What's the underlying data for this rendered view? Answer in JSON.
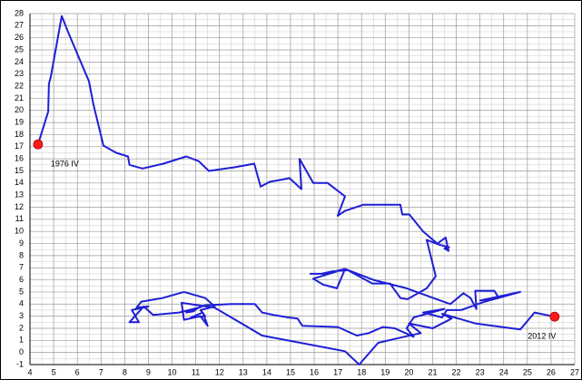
{
  "chart_data": {
    "type": "line",
    "x": [
      4.34,
      4.77,
      4.8,
      4.88,
      5.34,
      5.65,
      6.49,
      6.68,
      7.1,
      7.64,
      8.14,
      8.2,
      8.75,
      9.63,
      10.6,
      11.13,
      11.55,
      12.62,
      13.47,
      13.74,
      14.12,
      14.96,
      15.46,
      15.38,
      15.96,
      16.57,
      17.3,
      16.99,
      17.3,
      18.07,
      19.64,
      19.72,
      20.02,
      20.6,
      21.2,
      21.55,
      21.67,
      21.5,
      21.7,
      21.29,
      20.75,
      21.13,
      20.75,
      19.94,
      19.64,
      19.2,
      18.45,
      17.42,
      16.76,
      16.3,
      15.84,
      16.4,
      17.3,
      16.96,
      16.38,
      15.96,
      17.3,
      18.5,
      19.9,
      21.75,
      22.3,
      22.6,
      22.85,
      22.8,
      23.6,
      23.8,
      23.0,
      24.7,
      23.2,
      22.2,
      21.6,
      21.4,
      20.6,
      21.5,
      20.2,
      19.9,
      20.2,
      19.4,
      18.9,
      18.3,
      17.8,
      17.0,
      15.5,
      15.3,
      14.9,
      14.3,
      13.8,
      13.5,
      12.5,
      11.4,
      10.6,
      10.9,
      11.1,
      10.3,
      9.2,
      8.8,
      8.2,
      8.6,
      8.3,
      9.0,
      8.5,
      8.7,
      9.6,
      10.5,
      11.4,
      11.8,
      11.2,
      11.4,
      10.8,
      11.3,
      11.5,
      11.2,
      10.5,
      10.4,
      11.8,
      13.8,
      17.3,
      17.9,
      18.7,
      19.8,
      20.5,
      20.0,
      21.0,
      21.8,
      21.4,
      22.8,
      24.7,
      25.3,
      26.15
    ],
    "values": [
      17.2,
      19.9,
      22.2,
      22.8,
      27.8,
      26.3,
      22.4,
      20.5,
      17.1,
      16.5,
      16.2,
      15.5,
      15.2,
      15.6,
      16.2,
      15.8,
      15.0,
      15.3,
      15.6,
      13.7,
      14.1,
      14.4,
      13.5,
      16.0,
      14.0,
      14.0,
      12.9,
      11.3,
      11.7,
      12.2,
      12.2,
      11.4,
      11.4,
      10.0,
      9.0,
      9.5,
      8.4,
      8.6,
      8.7,
      8.9,
      9.3,
      6.3,
      5.3,
      4.4,
      4.5,
      5.7,
      5.7,
      6.8,
      6.7,
      6.5,
      6.5,
      6.5,
      6.9,
      5.3,
      5.6,
      6.1,
      6.9,
      6.0,
      5.3,
      4.0,
      4.9,
      4.5,
      3.6,
      5.1,
      5.1,
      4.5,
      4.3,
      5.0,
      4.2,
      3.5,
      3.5,
      2.9,
      3.3,
      3.6,
      2.9,
      2.0,
      1.3,
      2.0,
      2.1,
      1.6,
      1.4,
      2.1,
      2.2,
      2.8,
      2.9,
      3.1,
      3.3,
      4.0,
      4.0,
      3.9,
      3.3,
      3.4,
      3.7,
      3.3,
      3.1,
      3.8,
      2.5,
      2.5,
      3.5,
      3.8,
      3.7,
      4.2,
      4.5,
      5.0,
      4.5,
      3.8,
      3.5,
      3.0,
      2.9,
      3.3,
      2.2,
      3.0,
      2.7,
      4.1,
      3.7,
      1.4,
      0.1,
      -1.0,
      0.8,
      1.3,
      1.6,
      2.4,
      2.0,
      2.8,
      3.2,
      2.4,
      1.9,
      3.3,
      2.96
    ],
    "color": "#1f1fd6",
    "annotations": [
      {
        "text": "1976 IV",
        "x": 4.34,
        "y": 17.2,
        "color": "#ff1a1a"
      },
      {
        "text": "2012 IV",
        "x": 26.15,
        "y": 2.96,
        "color": "#ff1a1a"
      }
    ],
    "xlim": [
      4,
      27
    ],
    "xticks": [
      4,
      5,
      6,
      7,
      8,
      9,
      10,
      11,
      12,
      13,
      14,
      15,
      16,
      17,
      18,
      19,
      20,
      21,
      22,
      23,
      24,
      25,
      26,
      27
    ],
    "ylim": [
      -1,
      28
    ],
    "yticks": [
      -1,
      0,
      1,
      2,
      3,
      4,
      5,
      6,
      7,
      8,
      9,
      10,
      11,
      12,
      13,
      14,
      15,
      16,
      17,
      18,
      19,
      20,
      21,
      22,
      23,
      24,
      25,
      26,
      27,
      28
    ],
    "grid": true
  }
}
